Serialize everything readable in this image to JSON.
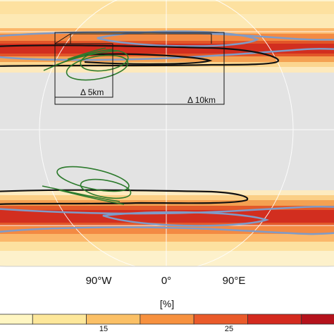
{
  "map": {
    "projection": "equal-earth-style global map, Atlantic-centred",
    "background_fill": "#e3e3e3",
    "graticule_color": "#ffffff",
    "boxes": [
      {
        "id": "inner",
        "label": "Δ 5km"
      },
      {
        "id": "outer",
        "label": "Δ 10km"
      }
    ],
    "longitude_ticks": [
      "90°W",
      "0°",
      "90°E"
    ],
    "contours": {
      "black": "#111111",
      "blue": "#7f9bc8",
      "green": "#2c7a2c"
    }
  },
  "colorbar": {
    "unit_label": "[%]",
    "tick_labels": [
      "15",
      "25"
    ],
    "colors": [
      "#fff6c2",
      "#fde79a",
      "#fbc066",
      "#f7913f",
      "#ea5a2a",
      "#d42a1e",
      "#b5121b"
    ]
  }
}
